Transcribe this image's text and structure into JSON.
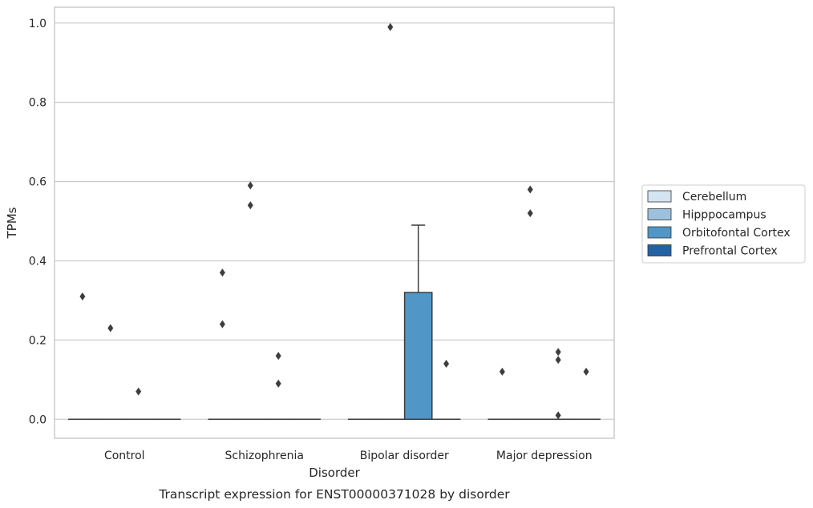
{
  "chart_data": {
    "type": "box",
    "caption": "Transcript expression for ENST00000371028 by disorder",
    "xlabel": "Disorder",
    "ylabel": "TPMs",
    "ylim": [
      -0.048,
      1.04
    ],
    "yticks": [
      0.0,
      0.2,
      0.4,
      0.6,
      0.8,
      1.0
    ],
    "ytick_labels": [
      "0.0",
      "0.2",
      "0.4",
      "0.6",
      "0.8",
      "1.0"
    ],
    "grid": true,
    "legend_position": "right",
    "categories": [
      "Control",
      "Schizophrenia",
      "Bipolar disorder",
      "Major depression"
    ],
    "series": [
      {
        "name": "Cerebellum",
        "color": "#d4e4f2",
        "boxes": [
          {
            "q1": 0,
            "median": 0,
            "q3": 0,
            "whisker_low": 0,
            "whisker_high": 0,
            "outliers": [
              0.31
            ]
          },
          {
            "q1": 0,
            "median": 0,
            "q3": 0,
            "whisker_low": 0,
            "whisker_high": 0,
            "outliers": [
              0.37,
              0.24
            ]
          },
          {
            "q1": 0,
            "median": 0,
            "q3": 0,
            "whisker_low": 0,
            "whisker_high": 0,
            "outliers": []
          },
          {
            "q1": 0,
            "median": 0,
            "q3": 0,
            "whisker_low": 0,
            "whisker_high": 0,
            "outliers": [
              0.12
            ]
          }
        ]
      },
      {
        "name": "Hipppocampus",
        "color": "#9cc1de",
        "boxes": [
          {
            "q1": 0,
            "median": 0,
            "q3": 0,
            "whisker_low": 0,
            "whisker_high": 0,
            "outliers": [
              0.23
            ]
          },
          {
            "q1": 0,
            "median": 0,
            "q3": 0,
            "whisker_low": 0,
            "whisker_high": 0,
            "outliers": [
              0.59,
              0.54
            ]
          },
          {
            "q1": 0,
            "median": 0,
            "q3": 0,
            "whisker_low": 0,
            "whisker_high": 0,
            "outliers": [
              0.99
            ]
          },
          {
            "q1": 0,
            "median": 0,
            "q3": 0,
            "whisker_low": 0,
            "whisker_high": 0,
            "outliers": [
              0.58,
              0.52
            ]
          }
        ]
      },
      {
        "name": "Orbitofontal Cortex",
        "color": "#5096c6",
        "boxes": [
          {
            "q1": 0,
            "median": 0,
            "q3": 0,
            "whisker_low": 0,
            "whisker_high": 0,
            "outliers": [
              0.07
            ]
          },
          {
            "q1": 0,
            "median": 0,
            "q3": 0,
            "whisker_low": 0,
            "whisker_high": 0,
            "outliers": [
              0.16,
              0.09
            ]
          },
          {
            "q1": 0,
            "median": 0,
            "q3": 0.32,
            "whisker_low": 0,
            "whisker_high": 0.49,
            "outliers": []
          },
          {
            "q1": 0,
            "median": 0,
            "q3": 0,
            "whisker_low": 0,
            "whisker_high": 0,
            "outliers": [
              0.17,
              0.15,
              0.01
            ]
          }
        ]
      },
      {
        "name": "Prefrontal Cortex",
        "color": "#2463a3",
        "boxes": [
          {
            "q1": 0,
            "median": 0,
            "q3": 0,
            "whisker_low": 0,
            "whisker_high": 0,
            "outliers": []
          },
          {
            "q1": 0,
            "median": 0,
            "q3": 0,
            "whisker_low": 0,
            "whisker_high": 0,
            "outliers": []
          },
          {
            "q1": 0,
            "median": 0,
            "q3": 0,
            "whisker_low": 0,
            "whisker_high": 0,
            "outliers": [
              0.14
            ]
          },
          {
            "q1": 0,
            "median": 0,
            "q3": 0,
            "whisker_low": 0,
            "whisker_high": 0,
            "outliers": [
              0.12
            ]
          }
        ]
      }
    ]
  }
}
